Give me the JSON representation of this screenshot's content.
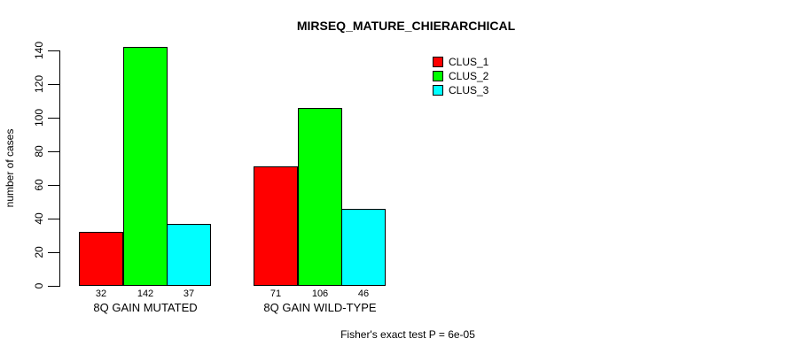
{
  "chart_data": {
    "type": "bar",
    "title": "MIRSEQ_MATURE_CHIERARCHICAL",
    "xlabel": "",
    "ylabel": "number of cases",
    "footnote": "Fisher's exact test P = 6e-05",
    "categories": [
      "8Q GAIN MUTATED",
      "8Q GAIN WILD-TYPE"
    ],
    "series": [
      {
        "name": "CLUS_1",
        "color": "#ff0000",
        "values": [
          32,
          71
        ]
      },
      {
        "name": "CLUS_2",
        "color": "#00ff00",
        "values": [
          142,
          106
        ]
      },
      {
        "name": "CLUS_3",
        "color": "#00ffff",
        "values": [
          37,
          46
        ]
      }
    ],
    "bar_value_labels": [
      [
        "32",
        "142",
        "37"
      ],
      [
        "71",
        "106",
        "46"
      ]
    ],
    "ylim": [
      0,
      140
    ],
    "yticks": [
      0,
      20,
      40,
      60,
      80,
      100,
      120,
      140
    ],
    "grid": false,
    "legend_position": "inside-top-right",
    "axis_color": "#000000",
    "background_color": "#ffffff"
  }
}
